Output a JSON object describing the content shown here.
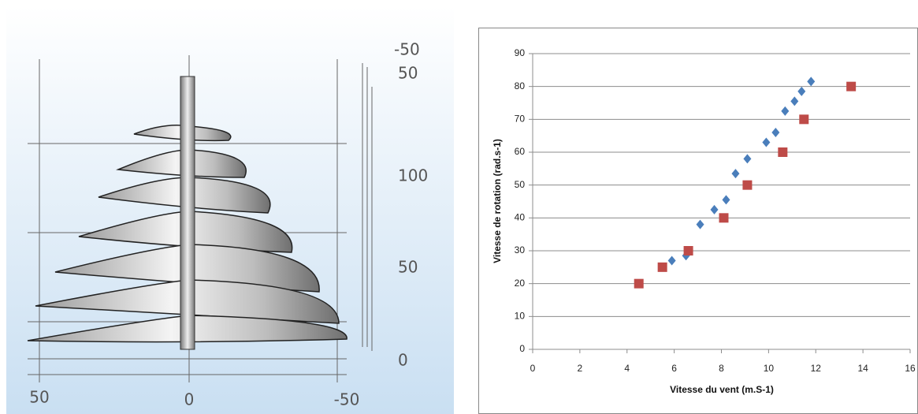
{
  "render": {
    "tick_labels": [
      "-50",
      "50",
      "100",
      "50",
      "0",
      "50",
      "0",
      "-50"
    ]
  },
  "chart_data": {
    "type": "scatter",
    "xlabel": "Vitesse du vent (m.S-1)",
    "ylabel": "Vitesse de rotation  (rad.s-1)",
    "xlim": [
      0,
      16
    ],
    "xticks": [
      0,
      2,
      4,
      6,
      8,
      10,
      12,
      14,
      16
    ],
    "ylim": [
      0,
      90
    ],
    "yticks": [
      0,
      10,
      20,
      30,
      40,
      50,
      60,
      70,
      80,
      90
    ],
    "grid": true,
    "series": [
      {
        "color": "#4a7ebb",
        "marker": "diamond",
        "x": [
          5.9,
          6.5,
          7.1,
          7.7,
          8.2,
          8.6,
          9.1,
          9.9,
          10.3,
          10.7,
          11.1,
          11.4,
          11.8
        ],
        "values": [
          27,
          28.5,
          38,
          42.5,
          45.5,
          53.5,
          58,
          63,
          66,
          72.5,
          75.5,
          78.5,
          81.5
        ]
      },
      {
        "color": "#be4b48",
        "marker": "square",
        "x": [
          4.5,
          5.5,
          6.6,
          8.1,
          9.1,
          10.6,
          11.5,
          13.5
        ],
        "values": [
          20,
          25,
          30,
          40,
          50,
          60,
          70,
          80
        ]
      }
    ]
  }
}
